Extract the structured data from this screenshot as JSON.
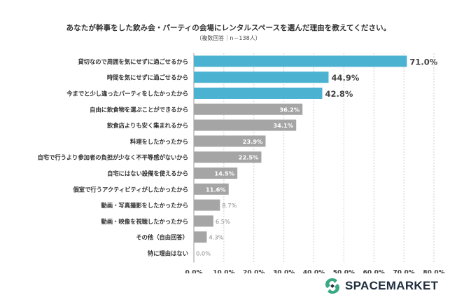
{
  "chart_data": {
    "type": "bar",
    "orientation": "horizontal",
    "title": "あなたが幹事をした飲み会・パーティの会場にレンタルスペースを選んだ理由を教えてください。",
    "subtitle": "（複数回答｜n－138人）",
    "categories": [
      "貸切なので周囲を気にせずに過ごせるから",
      "時間を気にせずに過ごせるから",
      "今までと少し違ったパーティをしたかったから",
      "自由に飲食物を選ぶことができるから",
      "飲食店よりも安く集まれるから",
      "料理をしたかったから",
      "自宅で行うより参加者の負担が少なく不平等感がないから",
      "自宅にはない設備を使えるから",
      "個室で行うアクティビティがしたかったから",
      "動画・写真撮影をしたかったから",
      "動画・映像を視聴したかったから",
      "その他（自由回答）",
      "特に理由はない"
    ],
    "values": [
      71.0,
      44.9,
      42.8,
      36.2,
      34.1,
      23.9,
      22.5,
      14.5,
      11.6,
      8.7,
      6.5,
      4.3,
      0.0
    ],
    "labels": [
      "71.0%",
      "44.9%",
      "42.8%",
      "36.2%",
      "34.1%",
      "23.9%",
      "22.5%",
      "14.5%",
      "11.6%",
      "8.7%",
      "6.5%",
      "4.3%",
      "0.0%"
    ],
    "highlight_count": 3,
    "xlim": [
      0,
      80
    ],
    "xticks": [
      "0.0%",
      "10.0%",
      "20.0%",
      "30.0%",
      "40.0%",
      "50.0%",
      "60.0%",
      "70.0%",
      "80.0%"
    ],
    "grid": "vertical-dashed",
    "colors": {
      "highlight": "#4bb3d1",
      "normal": "#a5a5a5",
      "grid": "#cfcfcf",
      "label_dark": "#444444"
    }
  },
  "brand": {
    "name": "SPACEMARKET",
    "icon": "spacemarket-logo-icon",
    "colors": [
      "#3aa882",
      "#1f2d3d"
    ]
  }
}
